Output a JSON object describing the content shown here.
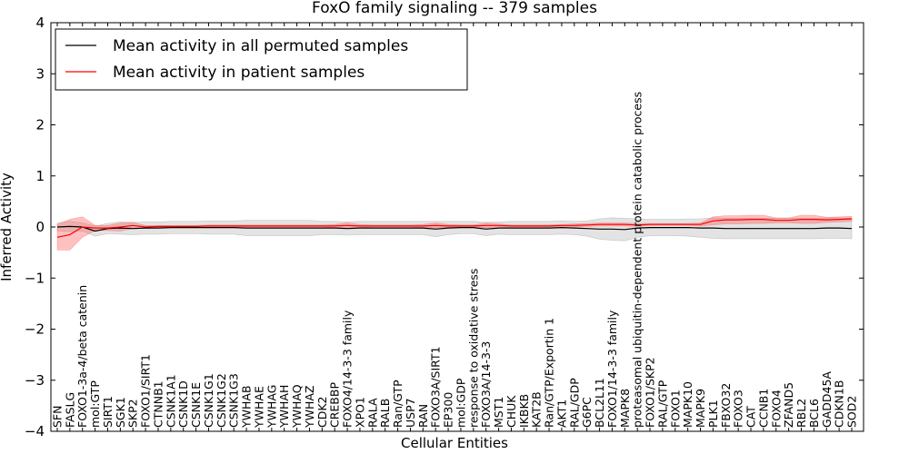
{
  "chart_data": {
    "type": "line",
    "title": "FoxO family signaling -- 379 samples",
    "xlabel": "Cellular Entities",
    "ylabel": "Inferred Activity",
    "ylim": [
      -4,
      4
    ],
    "yticks": [
      -4,
      -3,
      -2,
      -1,
      0,
      1,
      2,
      3,
      4
    ],
    "ytick_labels": [
      "−4",
      "−3",
      "−2",
      "−1",
      "0",
      "1",
      "2",
      "3",
      "4"
    ],
    "grid": false,
    "legend_position": "top-left",
    "categories": [
      "SFN",
      "FASLG",
      "FOXO1-3a-4/beta catenin",
      "mol:GTP",
      "SIRT1",
      "SGK1",
      "SKP2",
      "FOXO1/SIRT1",
      "CTNNB1",
      "CSNK1A1",
      "CSNK1D",
      "CSNK1E",
      "CSNK1G1",
      "CSNK1G2",
      "CSNK1G3",
      "YWHAB",
      "YWHAE",
      "YWHAG",
      "YWHAH",
      "YWHAQ",
      "YWHAZ",
      "CDK2",
      "CREBBP",
      "FOXO4/14-3-3 family",
      "XPO1",
      "RALA",
      "RALB",
      "Ran/GTP",
      "USP7",
      "RAN",
      "FOXO3A/SIRT1",
      "EP300",
      "mol:GDP",
      "response to oxidative stress",
      "FOXO3A/14-3-3",
      "MST1",
      "CHUK",
      "IKBKB",
      "KAT2B",
      "Ran/GTP/Exportin 1",
      "AKT1",
      "RAL/GDP",
      "G6PC",
      "BCL2L11",
      "FOXO1/14-3-3 family",
      "MAPK8",
      "proteasomal ubiquitin-dependent protein catabolic process",
      "FOXO1/SKP2",
      "RAL/GTP",
      "FOXO1",
      "MAPK10",
      "MAPK9",
      "PLK1",
      "FBXO32",
      "FOXO3",
      "CAT",
      "CCNB1",
      "FOXO4",
      "ZFAND5",
      "RBL2",
      "BCL6",
      "GADD45A",
      "CDKN1B",
      "SOD2"
    ],
    "series": [
      {
        "name": "Mean activity in all permuted samples",
        "color": "#000000",
        "values": [
          0.0,
          0.01,
          0.0,
          -0.08,
          -0.03,
          -0.02,
          -0.03,
          -0.02,
          -0.02,
          -0.01,
          -0.01,
          -0.01,
          -0.01,
          -0.01,
          -0.01,
          -0.02,
          -0.02,
          -0.02,
          -0.02,
          -0.02,
          -0.02,
          -0.02,
          -0.02,
          -0.03,
          -0.02,
          -0.02,
          -0.02,
          -0.02,
          -0.02,
          -0.02,
          -0.04,
          -0.02,
          -0.01,
          -0.01,
          -0.04,
          -0.02,
          -0.02,
          -0.02,
          -0.02,
          -0.02,
          -0.01,
          -0.02,
          -0.03,
          -0.04,
          -0.04,
          -0.05,
          -0.02,
          -0.01,
          -0.01,
          -0.01,
          -0.01,
          -0.02,
          -0.02,
          -0.03,
          -0.03,
          -0.03,
          -0.03,
          -0.03,
          -0.03,
          -0.03,
          -0.03,
          -0.02,
          -0.02,
          -0.03
        ],
        "band": [
          0.08,
          0.1,
          0.08,
          0.1,
          0.1,
          0.12,
          0.12,
          0.12,
          0.12,
          0.12,
          0.12,
          0.12,
          0.13,
          0.13,
          0.13,
          0.15,
          0.15,
          0.15,
          0.15,
          0.15,
          0.15,
          0.13,
          0.13,
          0.13,
          0.13,
          0.13,
          0.13,
          0.13,
          0.13,
          0.13,
          0.15,
          0.13,
          0.12,
          0.12,
          0.13,
          0.12,
          0.13,
          0.13,
          0.13,
          0.13,
          0.13,
          0.13,
          0.15,
          0.2,
          0.22,
          0.22,
          0.18,
          0.16,
          0.16,
          0.16,
          0.17,
          0.18,
          0.2,
          0.2,
          0.2,
          0.2,
          0.2,
          0.2,
          0.2,
          0.2,
          0.2,
          0.2,
          0.2,
          0.2
        ]
      },
      {
        "name": "Mean activity in patient samples",
        "color": "#ff0000",
        "values": [
          -0.2,
          -0.15,
          0.0,
          -0.02,
          -0.02,
          0.0,
          0.03,
          0.0,
          0.01,
          0.01,
          0.01,
          0.01,
          0.02,
          0.02,
          0.02,
          0.02,
          0.02,
          0.02,
          0.02,
          0.02,
          0.02,
          0.02,
          0.02,
          0.03,
          0.02,
          0.02,
          0.02,
          0.02,
          0.02,
          0.02,
          0.03,
          0.02,
          0.02,
          0.02,
          0.03,
          0.03,
          0.02,
          0.02,
          0.02,
          0.02,
          0.03,
          0.03,
          0.04,
          0.05,
          0.05,
          0.05,
          0.04,
          0.05,
          0.05,
          0.05,
          0.05,
          0.05,
          0.12,
          0.14,
          0.14,
          0.15,
          0.15,
          0.13,
          0.13,
          0.15,
          0.15,
          0.14,
          0.15,
          0.16
        ],
        "band": [
          0.25,
          0.3,
          0.2,
          0.05,
          0.05,
          0.08,
          0.06,
          0.03,
          0.02,
          0.02,
          0.02,
          0.02,
          0.02,
          0.02,
          0.02,
          0.02,
          0.02,
          0.02,
          0.02,
          0.02,
          0.02,
          0.02,
          0.03,
          0.05,
          0.03,
          0.02,
          0.02,
          0.02,
          0.02,
          0.03,
          0.05,
          0.03,
          0.02,
          0.02,
          0.05,
          0.03,
          0.02,
          0.02,
          0.02,
          0.02,
          0.02,
          0.03,
          0.03,
          0.03,
          0.03,
          0.03,
          0.03,
          0.02,
          0.02,
          0.02,
          0.02,
          0.03,
          0.08,
          0.08,
          0.08,
          0.08,
          0.08,
          0.05,
          0.05,
          0.08,
          0.08,
          0.05,
          0.05,
          0.05
        ]
      }
    ]
  }
}
